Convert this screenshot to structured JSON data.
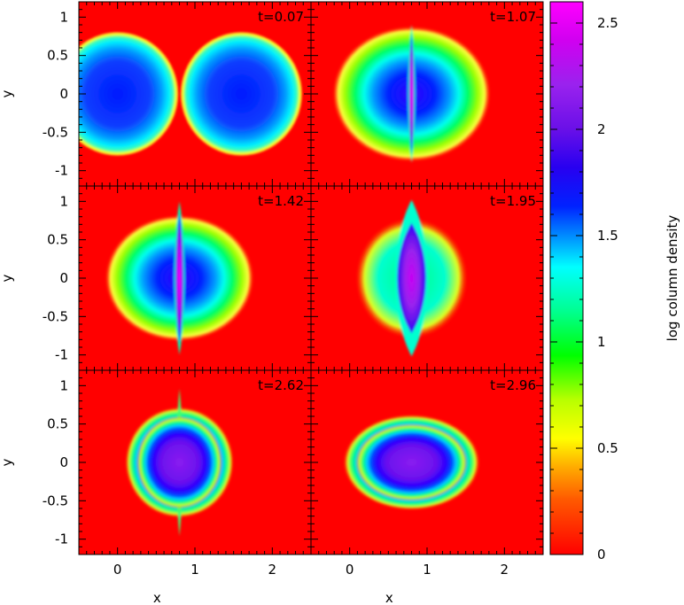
{
  "chart_data": {
    "type": "heatmap",
    "layout": "3 rows x 2 columns, shared axes",
    "xlabel": "x",
    "ylabel": "y",
    "xlim": [
      -0.5,
      2.5
    ],
    "ylim": [
      -1.2,
      1.2
    ],
    "x_ticks": [
      "0",
      "1",
      "2"
    ],
    "y_ticks": [
      "1",
      "0.5",
      "0",
      "-0.5",
      "-1"
    ],
    "colorbar": {
      "label": "log column density",
      "range": [
        0,
        2.6
      ],
      "ticks": [
        "0",
        "0.5",
        "1",
        "1.5",
        "2",
        "2.5"
      ],
      "colormap": "rainbow (red → orange → yellow → green → cyan → blue → magenta)"
    },
    "panels": [
      {
        "label": "t=0.07",
        "description": "two separate spherical clouds centred at x=0 and x=1.6, y=0"
      },
      {
        "label": "t=1.07",
        "description": "clouds colliding at x≈0.8, thin dense vertical sheet"
      },
      {
        "label": "t=1.42",
        "description": "compressed layer at x≈0.8 with high central density"
      },
      {
        "label": "t=1.95",
        "description": "elongated dense lens at x≈0.8"
      },
      {
        "label": "t=2.62",
        "description": "single roughly round merged cloud centred at x≈0.8"
      },
      {
        "label": "t=2.96",
        "description": "oblate merged cloud elongated along x, centred at x≈0.8"
      }
    ]
  },
  "colors": {
    "background": "#ff0000",
    "frame": "#000000"
  }
}
